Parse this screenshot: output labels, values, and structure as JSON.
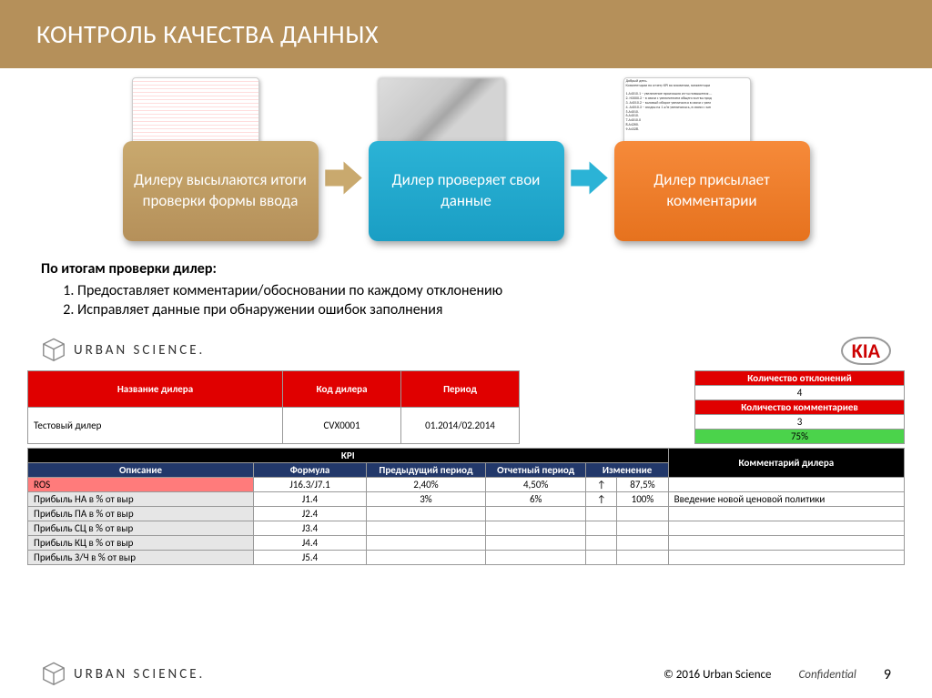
{
  "title": "КОНТРОЛЬ КАЧЕСТВА ДАННЫХ",
  "steps": {
    "s1": "Дилеру высылаются итоги проверки формы ввода",
    "s2": "Дилер проверяет свои данные",
    "s3": "Дилер присылает комментарии"
  },
  "email_preview": "Добрый день.\nКомментарии по отчету KPI во вложении, комментари\n\n1.А4010.1 – увеличение произошло из-за повышения ...\n2. Н3000.2 – в связи с увеличением общего кол-ва прод\n3. А4010.2 – валовый оборот увеличился в связи с увел\n4. А4010.3 – скидка на 1 а/м увеличилась, в связи с зап\n5.А4010.\n6.А4010.\n7.А4010.0\n8.А4260.\n9.А4328.",
  "colors": {
    "tan": "#b5905a",
    "blue": "#1a9ec4",
    "orange": "#e6721e",
    "arrow_tan": "#c9a96e",
    "arrow_blue": "#2bb3d6"
  },
  "body": {
    "lead": "По итогам проверки дилер:",
    "p1": "Предоставляет комментарии/обосновании по каждому отклонению",
    "p2": "Исправляет данные при обнаружении ошибок заполнения"
  },
  "brand": {
    "us": "URBAN SCIENCE.",
    "kia": "KIA"
  },
  "dealer_table": {
    "h1": "Название дилера",
    "h2": "Код дилера",
    "h3": "Период",
    "v1": "Тестовый дилер",
    "v2": "CVX0001",
    "v3": "01.2014/02.2014"
  },
  "dev_table": {
    "h1": "Количество отклонений",
    "v1": "4",
    "h2": "Количество комментариев",
    "v2": "3",
    "pct": "75%"
  },
  "kpi": {
    "title": "KPI",
    "h_desc": "Описание",
    "h_form": "Формула",
    "h_prev": "Предыдущий период",
    "h_cur": "Отчетный период",
    "h_chg": "Изменение",
    "h_com": "Комментарий дилера",
    "rows": [
      {
        "d": "ROS",
        "f": "J16.3/J7.1",
        "p": "2,40%",
        "c": "4,50%",
        "ch": "↑",
        "pc": "87,5%",
        "com": "",
        "hl": "red"
      },
      {
        "d": "Прибыль НА в % от выр",
        "f": "J1.4",
        "p": "3%",
        "c": "6%",
        "ch": "↑",
        "pc": "100%",
        "com": "Введение новой ценовой политики",
        "hl": "gray"
      },
      {
        "d": "Прибыль ПА в % от выр",
        "f": "J2.4",
        "p": "",
        "c": "",
        "ch": "",
        "pc": "",
        "com": "",
        "hl": "gray"
      },
      {
        "d": "Прибыль СЦ в % от выр",
        "f": "J3.4",
        "p": "",
        "c": "",
        "ch": "",
        "pc": "",
        "com": "",
        "hl": "gray"
      },
      {
        "d": "Прибыль КЦ в % от выр",
        "f": "J4.4",
        "p": "",
        "c": "",
        "ch": "",
        "pc": "",
        "com": "",
        "hl": "gray"
      },
      {
        "d": "Прибыль З/Ч в % от выр",
        "f": "J5.4",
        "p": "",
        "c": "",
        "ch": "",
        "pc": "",
        "com": "",
        "hl": "gray"
      }
    ]
  },
  "footer": {
    "copy": "© 2016 Urban Science",
    "conf": "Confidential",
    "page": "9"
  }
}
